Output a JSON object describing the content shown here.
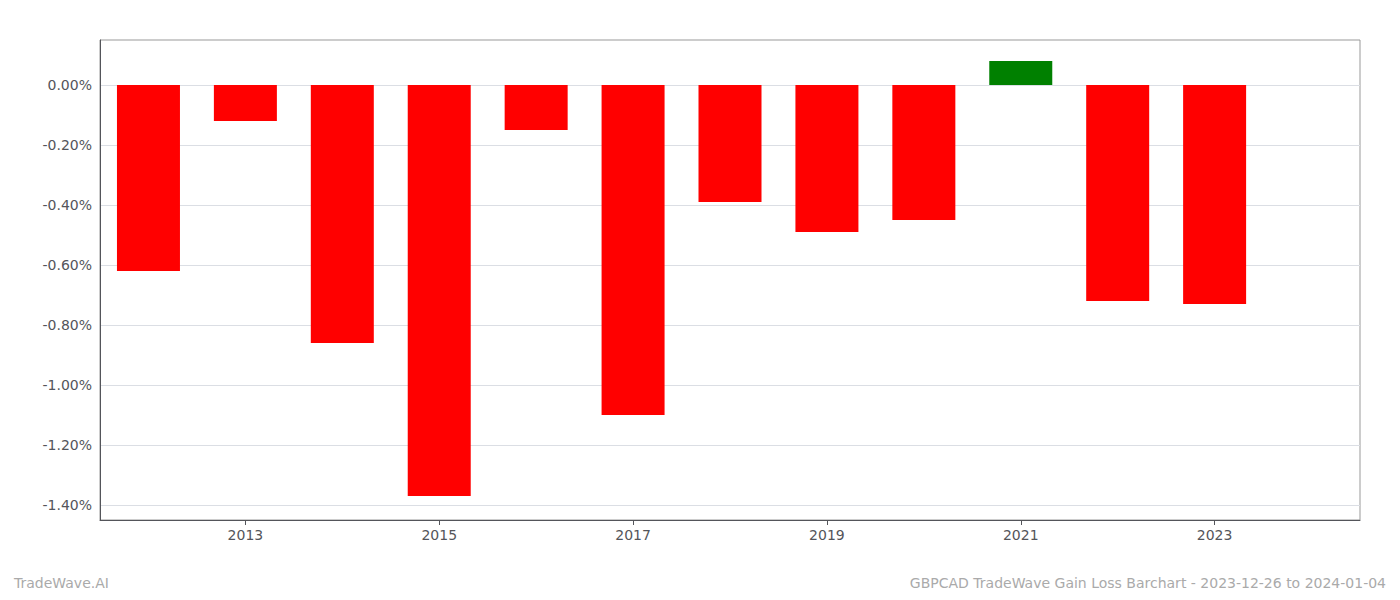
{
  "chart_data": {
    "type": "bar",
    "x": [
      2012,
      2013,
      2014,
      2015,
      2016,
      2017,
      2018,
      2019,
      2020,
      2021,
      2022,
      2023
    ],
    "values": [
      -0.62,
      -0.12,
      -0.86,
      -1.37,
      -0.15,
      -1.1,
      -0.39,
      -0.49,
      -0.45,
      0.08,
      -0.72,
      -0.73
    ],
    "colors": [
      "#ff0000",
      "#ff0000",
      "#ff0000",
      "#ff0000",
      "#ff0000",
      "#ff0000",
      "#ff0000",
      "#ff0000",
      "#ff0000",
      "#008000",
      "#ff0000",
      "#ff0000"
    ],
    "xlim": [
      2011.5,
      2024.5
    ],
    "xticks": [
      2013,
      2015,
      2017,
      2019,
      2021,
      2023
    ],
    "ylim": [
      -1.45,
      0.15
    ],
    "yticks": [
      {
        "value": 0.0,
        "label": "0.00%"
      },
      {
        "value": -0.2,
        "label": "-0.20%"
      },
      {
        "value": -0.4,
        "label": "-0.40%"
      },
      {
        "value": -0.6,
        "label": "-0.60%"
      },
      {
        "value": -0.8,
        "label": "-0.80%"
      },
      {
        "value": -1.0,
        "label": "-1.00%"
      },
      {
        "value": -1.2,
        "label": "-1.20%"
      },
      {
        "value": -1.4,
        "label": "-1.40%"
      }
    ],
    "grid": true,
    "annotations": [
      "TradeWave.AI",
      "GBPCAD TradeWave Gain Loss Barchart - 2023-12-26 to 2024-01-04"
    ]
  }
}
